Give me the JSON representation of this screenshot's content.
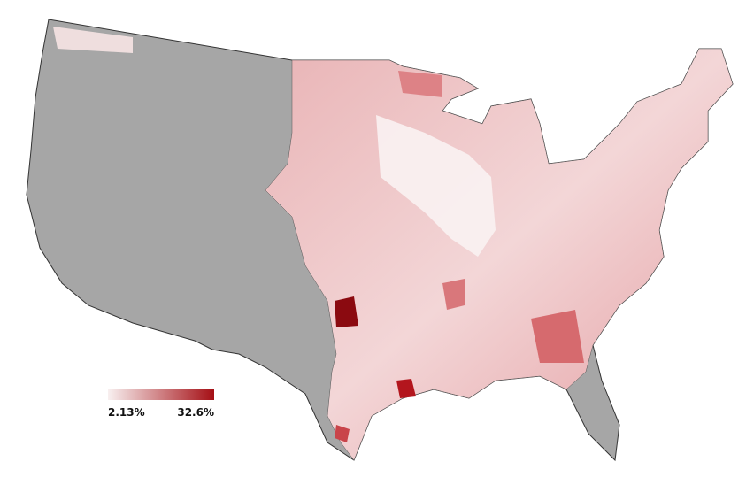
{
  "legend": {
    "min": {
      "value": 2.13,
      "label": "2.13%"
    },
    "max": {
      "value": 32.6,
      "label": "32.6%"
    },
    "colors": [
      "#f8f0f0",
      "#a50f15"
    ]
  }
}
